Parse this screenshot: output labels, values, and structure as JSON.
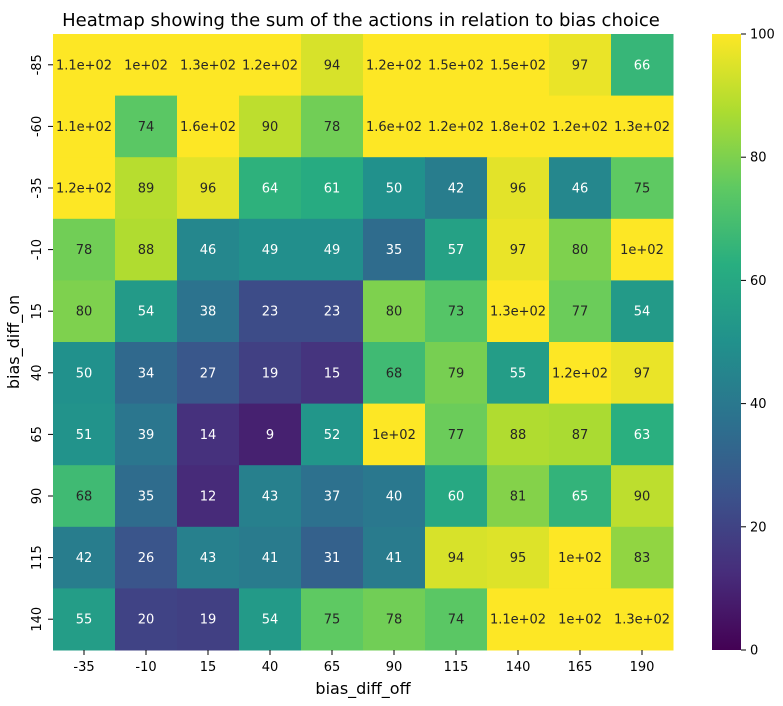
{
  "chart_data": {
    "type": "heatmap",
    "title": "Heatmap showing the sum of the actions in relation to bias choice",
    "xlabel": "bias_diff_off",
    "ylabel": "bias_diff_on",
    "x_categories": [
      "-35",
      "-10",
      "15",
      "40",
      "65",
      "90",
      "115",
      "140",
      "165",
      "190"
    ],
    "y_categories": [
      "-85",
      "-60",
      "-35",
      "-10",
      "15",
      "40",
      "65",
      "90",
      "115",
      "140"
    ],
    "values": [
      [
        110,
        100,
        130,
        120,
        94,
        120,
        150,
        150,
        97,
        66
      ],
      [
        110,
        74,
        160,
        90,
        78,
        160,
        120,
        180,
        120,
        130
      ],
      [
        120,
        89,
        96,
        64,
        61,
        50,
        42,
        96,
        46,
        75
      ],
      [
        78,
        88,
        46,
        49,
        49,
        35,
        57,
        97,
        80,
        100
      ],
      [
        80,
        54,
        38,
        23,
        23,
        80,
        73,
        130,
        77,
        54
      ],
      [
        50,
        34,
        27,
        19,
        15,
        68,
        79,
        55,
        120,
        97
      ],
      [
        51,
        39,
        14,
        9,
        52,
        100,
        77,
        88,
        87,
        63
      ],
      [
        68,
        35,
        12,
        43,
        37,
        40,
        60,
        81,
        65,
        90
      ],
      [
        42,
        26,
        43,
        41,
        31,
        41,
        94,
        95,
        100,
        83
      ],
      [
        55,
        20,
        19,
        54,
        75,
        78,
        74,
        110,
        100,
        130
      ]
    ],
    "annotations": [
      [
        "1.1e+02",
        "1e+02",
        "1.3e+02",
        "1.2e+02",
        "94",
        "1.2e+02",
        "1.5e+02",
        "1.5e+02",
        "97",
        "66"
      ],
      [
        "1.1e+02",
        "74",
        "1.6e+02",
        "90",
        "78",
        "1.6e+02",
        "1.2e+02",
        "1.8e+02",
        "1.2e+02",
        "1.3e+02"
      ],
      [
        "1.2e+02",
        "89",
        "96",
        "64",
        "61",
        "50",
        "42",
        "96",
        "46",
        "75"
      ],
      [
        "78",
        "88",
        "46",
        "49",
        "49",
        "35",
        "57",
        "97",
        "80",
        "1e+02"
      ],
      [
        "80",
        "54",
        "38",
        "23",
        "23",
        "80",
        "73",
        "1.3e+02",
        "77",
        "54"
      ],
      [
        "50",
        "34",
        "27",
        "19",
        "15",
        "68",
        "79",
        "55",
        "1.2e+02",
        "97"
      ],
      [
        "51",
        "39",
        "14",
        "9",
        "52",
        "1e+02",
        "77",
        "88",
        "87",
        "63"
      ],
      [
        "68",
        "35",
        "12",
        "43",
        "37",
        "40",
        "60",
        "81",
        "65",
        "90"
      ],
      [
        "42",
        "26",
        "43",
        "41",
        "31",
        "41",
        "94",
        "95",
        "1e+02",
        "83"
      ],
      [
        "55",
        "20",
        "19",
        "54",
        "75",
        "78",
        "74",
        "1.1e+02",
        "1e+02",
        "1.3e+02"
      ]
    ],
    "vmin": 0,
    "vmax": 100,
    "colormap": "viridis",
    "colorbar_ticks": [
      "0",
      "20",
      "40",
      "60",
      "80",
      "100"
    ],
    "colorbar_tick_values": [
      0,
      20,
      40,
      60,
      80,
      100
    ]
  }
}
